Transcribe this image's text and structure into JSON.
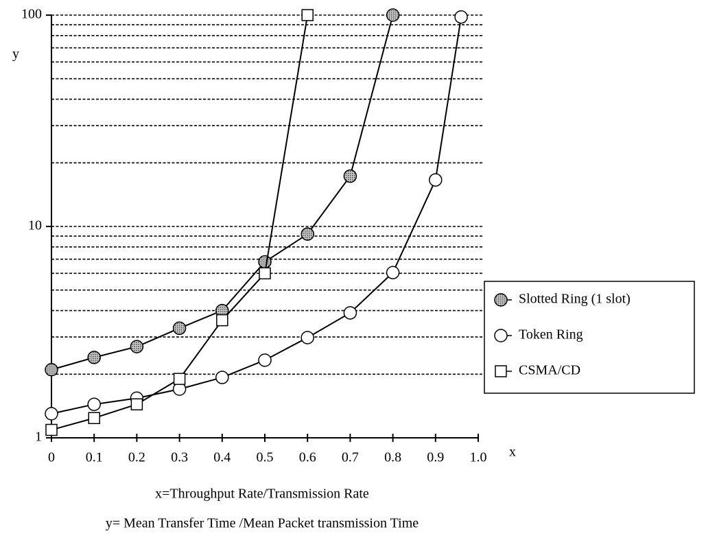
{
  "chart_data": {
    "type": "line",
    "log_y": true,
    "x_label": "x",
    "y_label": "y",
    "x_title": "x=Throughput Rate/Transmission Rate",
    "y_title": "y= Mean Transfer Time /Mean Packet transmission Time",
    "xlim": [
      0,
      1
    ],
    "ylim": [
      1,
      100
    ],
    "xticks": [
      0,
      0.1,
      0.2,
      0.3,
      0.4,
      0.5,
      0.6,
      0.7,
      0.8,
      0.9,
      {
        "value": 1,
        "label": "1.0"
      }
    ],
    "yticks": [
      1,
      10,
      100
    ],
    "ygrid": [
      2,
      3,
      4,
      5,
      6,
      7,
      8,
      9,
      10,
      20,
      30,
      40,
      50,
      60,
      70,
      80,
      90,
      100
    ],
    "series": [
      {
        "name": "Slotted Ring (1 slot)",
        "color": "#9a9a9a",
        "marker": "circle",
        "x": [
          0,
          0.1,
          0.2,
          0.3,
          0.4,
          0.5,
          0.6,
          0.7,
          0.8
        ],
        "values": [
          2.1,
          2.4,
          2.7,
          3.3,
          4.0,
          6.8,
          9.2,
          17.3,
          100
        ]
      },
      {
        "name": "Token Ring",
        "color": "#ffffff",
        "marker": "circle",
        "x": [
          0,
          0.1,
          0.2,
          0.3,
          0.4,
          0.5,
          0.6,
          0.7,
          0.8,
          0.9,
          0.96
        ],
        "values": [
          1.3,
          1.44,
          1.54,
          1.7,
          1.93,
          2.33,
          2.98,
          3.9,
          6.05,
          16.6,
          98
        ]
      },
      {
        "name": "CSMA/CD",
        "color": "#ffffff",
        "marker": "square",
        "x": [
          0,
          0.1,
          0.2,
          0.3,
          0.4,
          0.5,
          0.6
        ],
        "values": [
          1.09,
          1.24,
          1.44,
          1.9,
          3.6,
          6.0,
          100
        ]
      }
    ]
  }
}
